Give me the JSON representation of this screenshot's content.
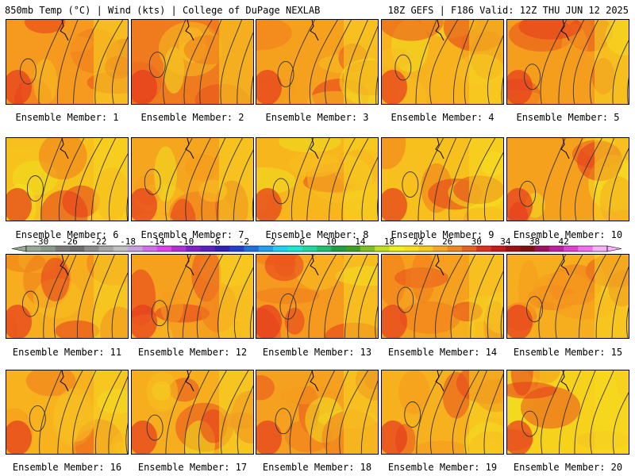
{
  "header": {
    "left": "850mb Temp (°C) | Wind (kts) | College of DuPage NEXLAB",
    "right": "18Z GEFS | F186 Valid: 12Z THU JUN 12 2025"
  },
  "members": [
    {
      "label": "Ensemble Member: 1",
      "base": "#f59a1e"
    },
    {
      "label": "Ensemble Member: 2",
      "base": "#f07a1e"
    },
    {
      "label": "Ensemble Member: 3",
      "base": "#f5a11e"
    },
    {
      "label": "Ensemble Member: 4",
      "base": "#f7b21e"
    },
    {
      "label": "Ensemble Member: 5",
      "base": "#f59e1e"
    },
    {
      "label": "Ensemble Member: 6",
      "base": "#f7c21c"
    },
    {
      "label": "Ensemble Member: 7",
      "base": "#f5a51e"
    },
    {
      "label": "Ensemble Member: 8",
      "base": "#f7b61c"
    },
    {
      "label": "Ensemble Member: 9",
      "base": "#f7c01c"
    },
    {
      "label": "Ensemble Member: 10",
      "base": "#f5a11e"
    },
    {
      "label": "Ensemble Member: 11",
      "base": "#f7ae1e"
    },
    {
      "label": "Ensemble Member: 12",
      "base": "#f5a11e"
    },
    {
      "label": "Ensemble Member: 13",
      "base": "#f59a1e"
    },
    {
      "label": "Ensemble Member: 14",
      "base": "#f5a01e"
    },
    {
      "label": "Ensemble Member: 15",
      "base": "#f7ae1e"
    },
    {
      "label": "Ensemble Member: 16",
      "base": "#f7b21e"
    },
    {
      "label": "Ensemble Member: 17",
      "base": "#f7ae1e"
    },
    {
      "label": "Ensemble Member: 18",
      "base": "#f5a01e"
    },
    {
      "label": "Ensemble Member: 19",
      "base": "#f7b01e"
    },
    {
      "label": "Ensemble Member: 20",
      "base": "#f7d21c"
    }
  ],
  "colorbar": {
    "ticks": [
      "-30",
      "-26",
      "-22",
      "-18",
      "-14",
      "-10",
      "-6",
      "-2",
      "2",
      "6",
      "10",
      "14",
      "18",
      "22",
      "26",
      "30",
      "34",
      "38",
      "42"
    ],
    "colors": [
      "#9aa89a",
      "#8a9a8a",
      "#7a7a7a",
      "#6e6e6e",
      "#8c8c8c",
      "#a6a6a6",
      "#c0c0c0",
      "#c8a0e0",
      "#d070e8",
      "#e040f0",
      "#b030d8",
      "#8020c8",
      "#5a20c0",
      "#3020b8",
      "#2040d0",
      "#2070e0",
      "#20a0f0",
      "#20d0f0",
      "#20e8d0",
      "#20d8a0",
      "#20c070",
      "#20a040",
      "#40a020",
      "#80c020",
      "#c0e020",
      "#f0f020",
      "#f8e020",
      "#f8c820",
      "#f8a820",
      "#f08820",
      "#e86020",
      "#e03020",
      "#c81818",
      "#a01010",
      "#801010",
      "#a01060",
      "#c020a0",
      "#e040d0",
      "#f070f0",
      "#f8b0f8"
    ]
  }
}
